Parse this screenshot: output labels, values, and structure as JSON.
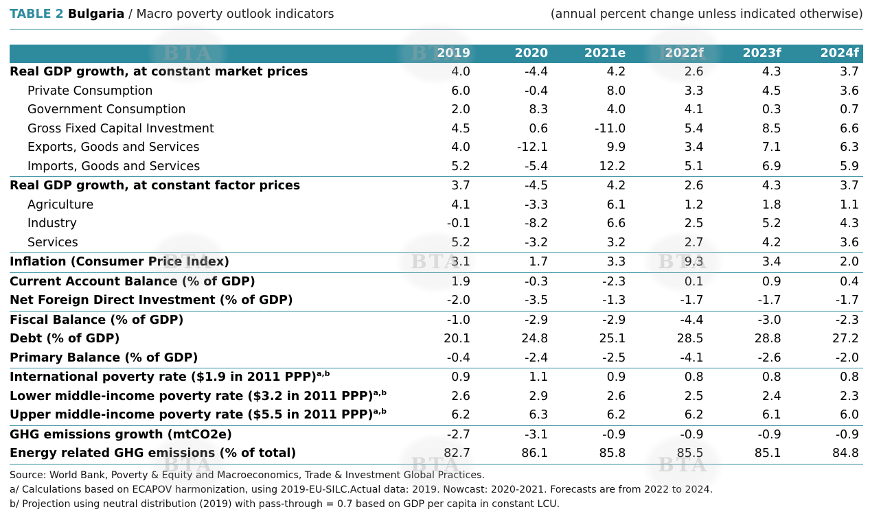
{
  "title": {
    "table_label": "TABLE 2",
    "country": "Bulgaria",
    "subtitle": "/ Macro poverty outlook indicators",
    "units": "(annual percent change unless indicated otherwise)"
  },
  "watermark_text": "BTA",
  "columns": [
    "2019",
    "2020",
    "2021e",
    "2022f",
    "2023f",
    "2024f"
  ],
  "rows": [
    {
      "label": "Real GDP growth, at constant market prices",
      "sup": "",
      "values": [
        "4.0",
        "-4.4",
        "4.2",
        "2.6",
        "4.3",
        "3.7"
      ]
    },
    {
      "label": "Private Consumption",
      "sup": "",
      "values": [
        "6.0",
        "-0.4",
        "8.0",
        "3.3",
        "4.5",
        "3.6"
      ]
    },
    {
      "label": "Government Consumption",
      "sup": "",
      "values": [
        "2.0",
        "8.3",
        "4.0",
        "4.1",
        "0.3",
        "0.7"
      ]
    },
    {
      "label": "Gross Fixed Capital Investment",
      "sup": "",
      "values": [
        "4.5",
        "0.6",
        "-11.0",
        "5.4",
        "8.5",
        "6.6"
      ]
    },
    {
      "label": "Exports, Goods and Services",
      "sup": "",
      "values": [
        "4.0",
        "-12.1",
        "9.9",
        "3.4",
        "7.1",
        "6.3"
      ]
    },
    {
      "label": "Imports, Goods and Services",
      "sup": "",
      "values": [
        "5.2",
        "-5.4",
        "12.2",
        "5.1",
        "6.9",
        "5.9"
      ]
    },
    {
      "label": "Real GDP growth, at constant factor prices",
      "sup": "",
      "values": [
        "3.7",
        "-4.5",
        "4.2",
        "2.6",
        "4.3",
        "3.7"
      ]
    },
    {
      "label": "Agriculture",
      "sup": "",
      "values": [
        "4.1",
        "-3.3",
        "6.1",
        "1.2",
        "1.8",
        "1.1"
      ]
    },
    {
      "label": "Industry",
      "sup": "",
      "values": [
        "-0.1",
        "-8.2",
        "6.6",
        "2.5",
        "5.2",
        "4.3"
      ]
    },
    {
      "label": "Services",
      "sup": "",
      "values": [
        "5.2",
        "-3.2",
        "3.2",
        "2.7",
        "4.2",
        "3.6"
      ]
    },
    {
      "label": "Inflation (Consumer Price Index)",
      "sup": "",
      "values": [
        "3.1",
        "1.7",
        "3.3",
        "9.3",
        "3.4",
        "2.0"
      ]
    },
    {
      "label": "Current Account Balance (% of GDP)",
      "sup": "",
      "values": [
        "1.9",
        "-0.3",
        "-2.3",
        "0.1",
        "0.9",
        "0.4"
      ]
    },
    {
      "label": "Net Foreign Direct Investment (% of GDP)",
      "sup": "",
      "values": [
        "-2.0",
        "-3.5",
        "-1.3",
        "-1.7",
        "-1.7",
        "-1.7"
      ]
    },
    {
      "label": "Fiscal Balance (% of GDP)",
      "sup": "",
      "values": [
        "-1.0",
        "-2.9",
        "-2.9",
        "-4.4",
        "-3.0",
        "-2.3"
      ]
    },
    {
      "label": "Debt (% of GDP)",
      "sup": "",
      "values": [
        "20.1",
        "24.8",
        "25.1",
        "28.5",
        "28.8",
        "27.2"
      ]
    },
    {
      "label": "Primary Balance (% of GDP)",
      "sup": "",
      "values": [
        "-0.4",
        "-2.4",
        "-2.5",
        "-4.1",
        "-2.6",
        "-2.0"
      ]
    },
    {
      "label": "International poverty rate ($1.9 in 2011 PPP)",
      "sup": "a,b",
      "values": [
        "0.9",
        "1.1",
        "0.9",
        "0.8",
        "0.8",
        "0.8"
      ]
    },
    {
      "label": "Lower middle-income poverty rate ($3.2 in 2011 PPP)",
      "sup": "a,b",
      "values": [
        "2.6",
        "2.9",
        "2.6",
        "2.5",
        "2.4",
        "2.3"
      ]
    },
    {
      "label": "Upper middle-income poverty rate ($5.5 in 2011 PPP)",
      "sup": "a,b",
      "values": [
        "6.2",
        "6.3",
        "6.2",
        "6.2",
        "6.1",
        "6.0"
      ]
    },
    {
      "label": "GHG emissions growth (mtCO2e)",
      "sup": "",
      "values": [
        "-2.7",
        "-3.1",
        "-0.9",
        "-0.9",
        "-0.9",
        "-0.9"
      ]
    },
    {
      "label": "Energy related GHG emissions (% of total)",
      "sup": "",
      "values": [
        "82.7",
        "86.1",
        "85.8",
        "85.5",
        "85.1",
        "84.8"
      ]
    }
  ],
  "notes": [
    "Source: World Bank, Poverty & Equity and Macroeconomics, Trade & Investment Global Practices.",
    "a/ Calculations based on ECAPOV harmonization, using 2019-EU-SILC.Actual data: 2019. Nowcast: 2020-2021. Forecasts are from 2022 to 2024.",
    "b/ Projection using neutral distribution (2019) with pass-through = 0.7 based on GDP per capita in constant LCU."
  ]
}
